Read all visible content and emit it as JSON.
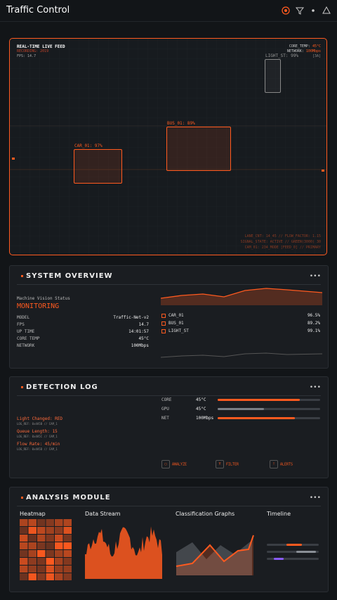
{
  "header": {
    "title": "Traffic Control"
  },
  "feed": {
    "title": "REAL-TIME LIVE FEED",
    "status": "RECORDING: 2019",
    "fps": "FPS: 14.7",
    "core_temp_label": "CORE_TEMP:",
    "core_temp": "45°C",
    "network_label": "NETWORK:",
    "network": "100Mbps",
    "cam": "[3A]",
    "detections": [
      "CAR_01: 97%",
      "BUS_01: 89%",
      "LIGHT_ST: 99%"
    ],
    "footer": [
      "LANE_CNT: 14_45 // FLOW_FACTOR: 1.15",
      "SIGNAL_STATE: ACTIVE // GREEN(3000) 30",
      "CAM_01: 234_MODE [FEED_0] // PRIMARY"
    ]
  },
  "overview": {
    "title": "SYSTEM OVERVIEW",
    "status_label": "Machine Vision Status",
    "status": "MONITORING",
    "stats": [
      [
        "MODEL",
        "Traffic-Net-v2"
      ],
      [
        "FPS",
        "14.7"
      ],
      [
        "UP TIME",
        "14:01:57"
      ],
      [
        "CORE TEMP",
        "45°C"
      ],
      [
        "NETWORK",
        "100Mbps"
      ]
    ],
    "detections": [
      [
        "CAR_01",
        "96.5%"
      ],
      [
        "BUS_01",
        "89.2%"
      ],
      [
        "LIGHT_ST",
        "99.1%"
      ]
    ]
  },
  "log": {
    "title": "DETECTION LOG",
    "entries": [
      {
        "event": "Light Changed: RED",
        "ref": "LOG_REF: 0x4A5B // CAM_1"
      },
      {
        "event": "Queue Length: 15",
        "ref": "LOG_REF: 0x4A5C // CAM_1"
      },
      {
        "event": "Flow Rate: 45/min",
        "ref": "LOG_REF: 0x4A5D // CAM_1"
      }
    ],
    "meters": [
      [
        "CORE",
        "45°C"
      ],
      [
        "GPU",
        "45°C"
      ],
      [
        "NET",
        "100Mbps"
      ]
    ],
    "buttons": [
      "ANALYZE",
      "FILTER",
      "ALERTS"
    ]
  },
  "analysis": {
    "title": "ANALYSIS MODULE",
    "sections": [
      "Heatmap",
      "Data Stream",
      "Classification Graphs",
      "Timeline"
    ]
  }
}
